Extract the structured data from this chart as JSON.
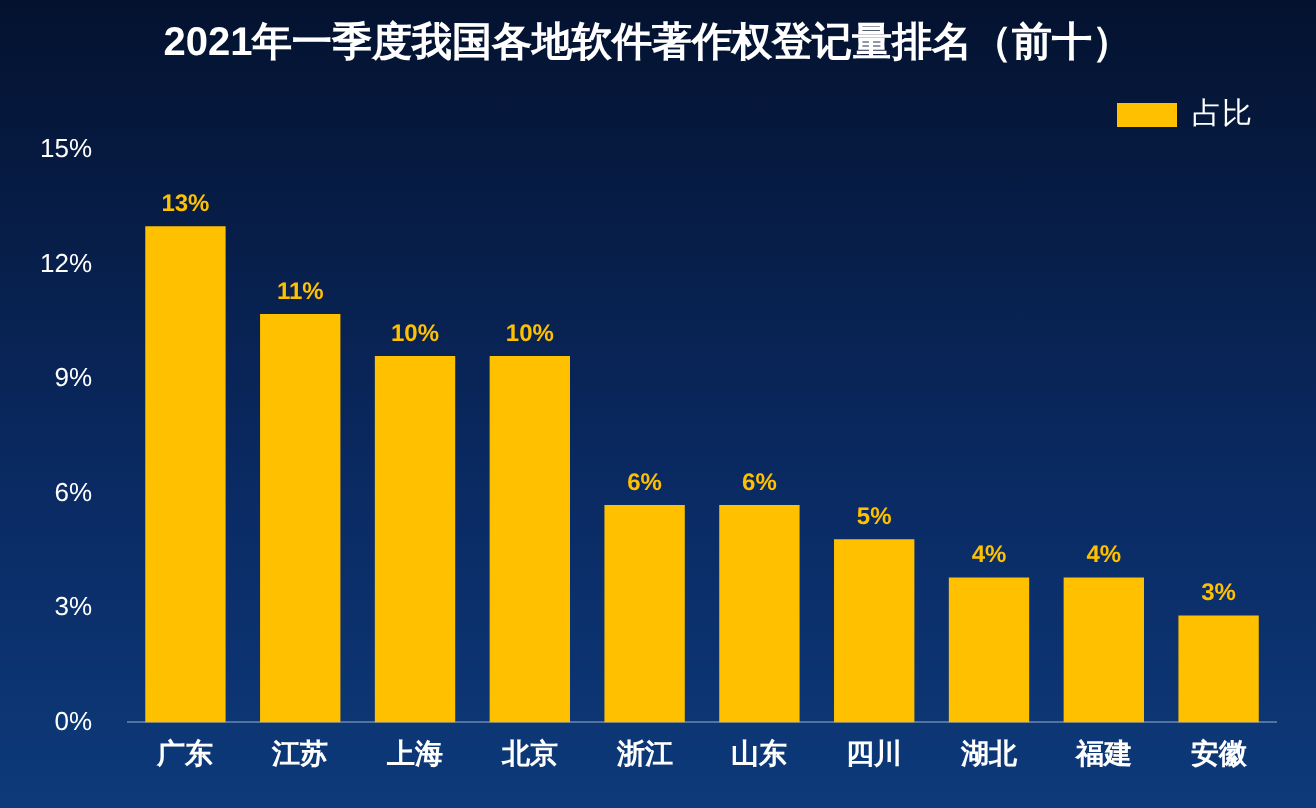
{
  "chart_data": {
    "type": "bar",
    "title": "2021年一季度我国各地软件著作权登记量排名（前十）",
    "categories": [
      "广东",
      "江苏",
      "上海",
      "北京",
      "浙江",
      "山东",
      "四川",
      "湖北",
      "福建",
      "安徽"
    ],
    "series": [
      {
        "name": "占比",
        "color": "#ffc000",
        "values": [
          13,
          10.7,
          9.6,
          9.6,
          5.7,
          5.7,
          4.8,
          3.8,
          3.8,
          2.8
        ],
        "value_labels": [
          "13%",
          "11%",
          "10%",
          "10%",
          "6%",
          "6%",
          "5%",
          "4%",
          "4%",
          "3%"
        ]
      }
    ],
    "ylim": [
      0,
      15
    ],
    "yticks": [
      {
        "value": 0,
        "label": "0%"
      },
      {
        "value": 3,
        "label": "3%"
      },
      {
        "value": 6,
        "label": "6%"
      },
      {
        "value": 9,
        "label": "9%"
      },
      {
        "value": 12,
        "label": "12%"
      },
      {
        "value": 15,
        "label": "15%"
      }
    ],
    "grid": false,
    "legend": "top right"
  }
}
